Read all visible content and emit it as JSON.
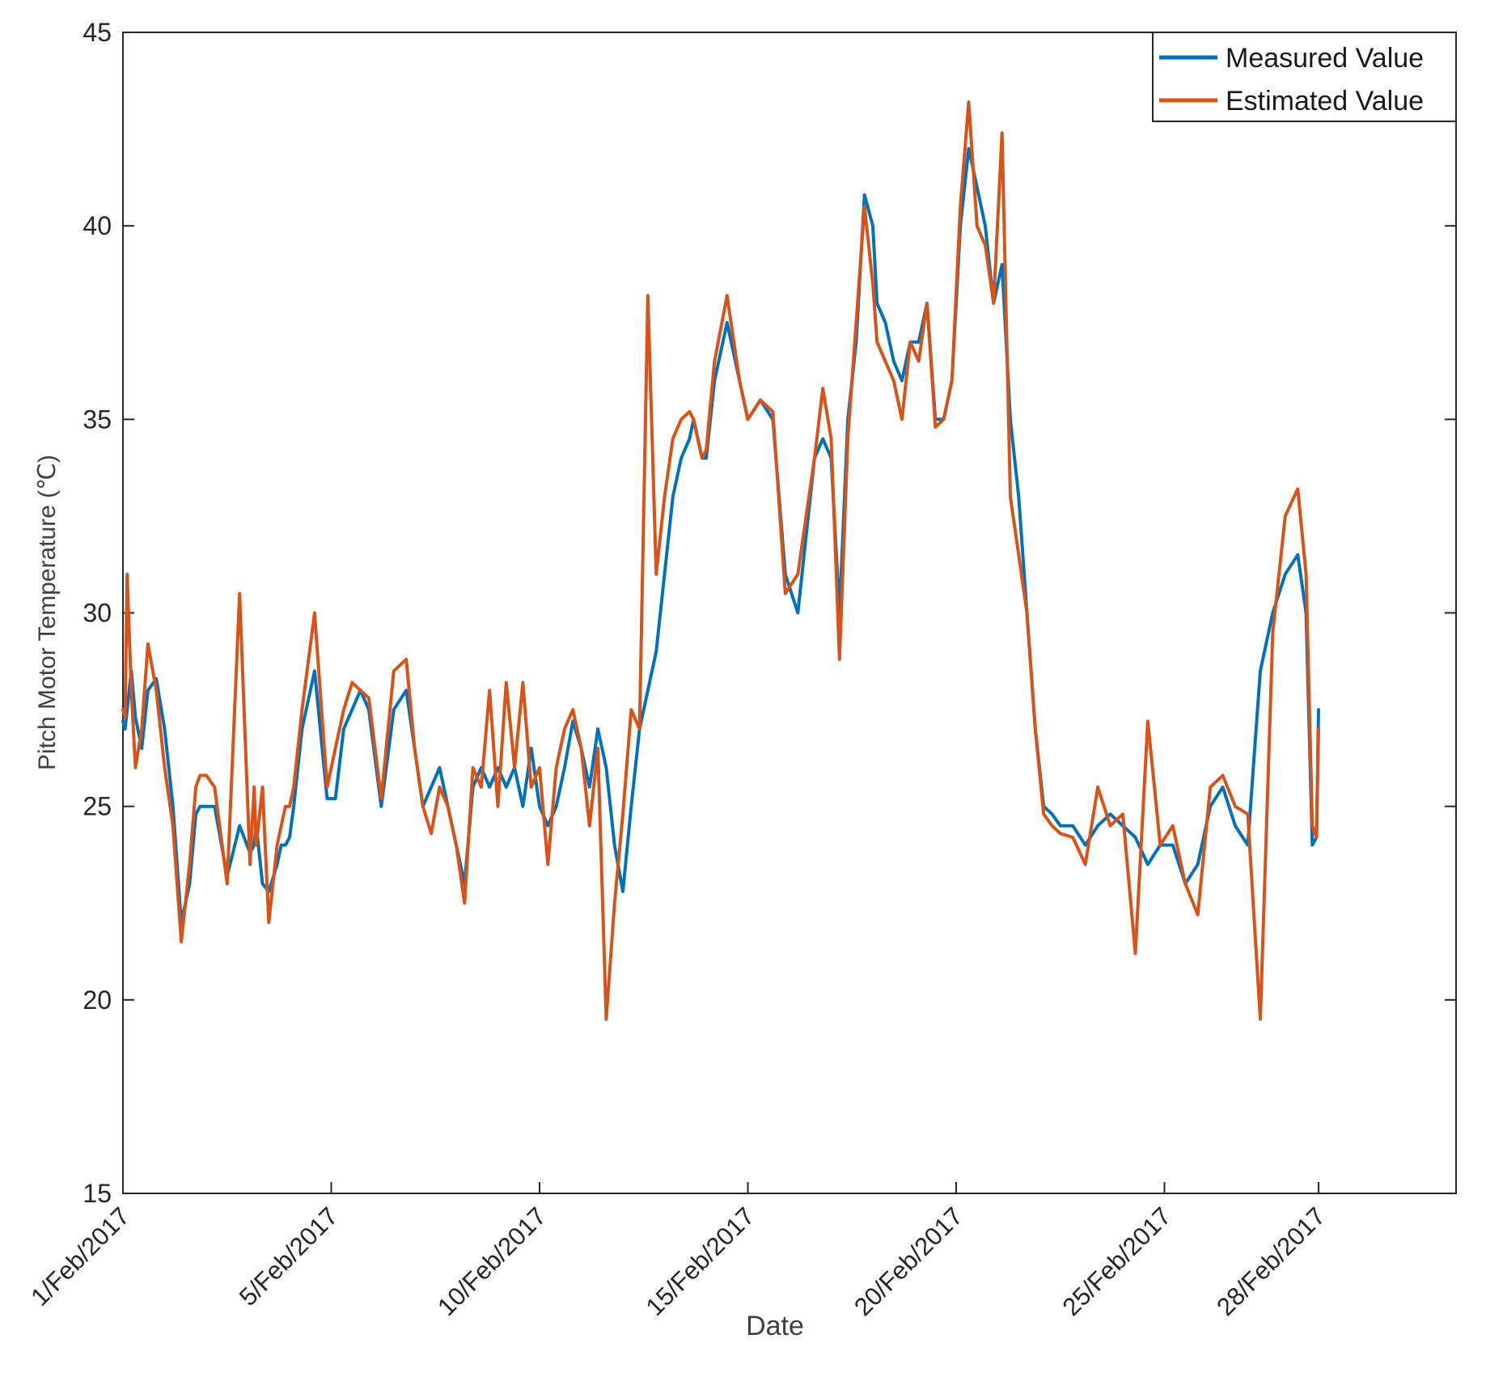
{
  "chart_data": {
    "type": "line",
    "title": "",
    "xlabel": "Date",
    "ylabel": "Pitch Motor Temperature (℃)",
    "xlim": [
      1,
      33
    ],
    "ylim": [
      15,
      45
    ],
    "yticks": [
      15,
      20,
      25,
      30,
      35,
      40,
      45
    ],
    "xticks": [
      {
        "value": 1,
        "label": "1/Feb/2017"
      },
      {
        "value": 6,
        "label": "5/Feb/2017"
      },
      {
        "value": 11,
        "label": "10/Feb/2017"
      },
      {
        "value": 16,
        "label": "15/Feb/2017"
      },
      {
        "value": 21,
        "label": "20/Feb/2017"
      },
      {
        "value": 26,
        "label": "25/Feb/2017"
      },
      {
        "value": 29.7,
        "label": "28/Feb/2017"
      }
    ],
    "grid": false,
    "legend_position": "top-right",
    "series": [
      {
        "name": "Measured Value",
        "color": "#0072BD",
        "x": [
          1,
          1.05,
          1.1,
          1.2,
          1.3,
          1.45,
          1.6,
          1.8,
          2.0,
          2.2,
          2.4,
          2.6,
          2.75,
          2.85,
          3.0,
          3.2,
          3.5,
          3.8,
          4.05,
          4.15,
          4.2,
          4.35,
          4.5,
          4.7,
          4.8,
          4.9,
          5.0,
          5.1,
          5.3,
          5.6,
          5.9,
          6.1,
          6.3,
          6.5,
          6.7,
          6.9,
          7.2,
          7.5,
          7.8,
          8.0,
          8.2,
          8.4,
          8.6,
          8.8,
          9.0,
          9.2,
          9.4,
          9.6,
          9.8,
          10.0,
          10.2,
          10.4,
          10.6,
          10.8,
          11.0,
          11.2,
          11.4,
          11.6,
          11.8,
          12.0,
          12.2,
          12.4,
          12.6,
          12.8,
          13.0,
          13.2,
          13.4,
          13.6,
          13.8,
          14.0,
          14.2,
          14.4,
          14.6,
          14.7,
          14.8,
          14.9,
          15.0,
          15.2,
          15.5,
          15.8,
          16.0,
          16.3,
          16.6,
          16.9,
          17.2,
          17.4,
          17.6,
          17.8,
          18.0,
          18.2,
          18.4,
          18.6,
          18.8,
          19.0,
          19.1,
          19.3,
          19.5,
          19.7,
          19.9,
          20.1,
          20.3,
          20.5,
          20.7,
          20.9,
          21.1,
          21.3,
          21.5,
          21.7,
          21.9,
          22.1,
          22.3,
          22.5,
          22.7,
          22.9,
          23.1,
          23.3,
          23.5,
          23.8,
          24.1,
          24.4,
          24.7,
          25.0,
          25.3,
          25.6,
          25.9,
          26.2,
          26.5,
          26.8,
          27.1,
          27.4,
          27.7,
          28.0,
          28.3,
          28.6,
          28.9,
          29.2,
          29.4,
          29.55,
          29.65,
          29.7
        ],
        "y": [
          27.2,
          27.0,
          27.5,
          28.5,
          27.3,
          26.5,
          28.0,
          28.3,
          27.0,
          25.0,
          22.0,
          23.0,
          24.8,
          25.0,
          25.0,
          25.0,
          23.2,
          24.5,
          23.8,
          24.0,
          24.5,
          23.0,
          22.8,
          23.5,
          24.0,
          24.0,
          24.2,
          25.0,
          27.0,
          28.5,
          25.2,
          25.2,
          27.0,
          27.5,
          28.0,
          27.5,
          25.0,
          27.5,
          28.0,
          26.5,
          25.0,
          25.5,
          26.0,
          25.0,
          24.0,
          23.0,
          25.5,
          26.0,
          25.5,
          26.0,
          25.5,
          26.0,
          25.0,
          26.5,
          25.0,
          24.5,
          25.0,
          26.0,
          27.2,
          26.5,
          25.5,
          27.0,
          26.0,
          24.0,
          22.8,
          25.0,
          27.0,
          28.0,
          29.0,
          31.0,
          33.0,
          34.0,
          34.5,
          35.0,
          34.5,
          34.0,
          34.0,
          36.0,
          37.5,
          36.0,
          35.0,
          35.5,
          35.0,
          31.0,
          30.0,
          32.0,
          34.0,
          34.5,
          34.0,
          30.0,
          35.0,
          37.0,
          40.8,
          40.0,
          38.0,
          37.5,
          36.5,
          36.0,
          37.0,
          37.0,
          38.0,
          35.0,
          35.0,
          36.0,
          40.0,
          42.0,
          41.0,
          40.0,
          38.0,
          39.0,
          35.0,
          33.0,
          30.0,
          27.0,
          25.0,
          24.8,
          24.5,
          24.5,
          24.0,
          24.5,
          24.8,
          24.5,
          24.2,
          23.5,
          24.0,
          24.0,
          23.0,
          23.5,
          25.0,
          25.5,
          24.5,
          24.0,
          28.5,
          30.0,
          31.0,
          31.5,
          30.0,
          24.0,
          24.2,
          27.5
        ]
      },
      {
        "name": "Estimated Value",
        "color": "#D95319",
        "x": [
          1,
          1.05,
          1.1,
          1.2,
          1.3,
          1.45,
          1.6,
          1.8,
          2.0,
          2.2,
          2.4,
          2.6,
          2.75,
          2.85,
          3.0,
          3.2,
          3.5,
          3.8,
          4.05,
          4.15,
          4.2,
          4.35,
          4.5,
          4.7,
          4.8,
          4.9,
          5.0,
          5.1,
          5.3,
          5.6,
          5.9,
          6.1,
          6.3,
          6.5,
          6.7,
          6.9,
          7.2,
          7.5,
          7.8,
          8.0,
          8.2,
          8.4,
          8.6,
          8.8,
          9.0,
          9.2,
          9.4,
          9.6,
          9.8,
          10.0,
          10.2,
          10.4,
          10.6,
          10.8,
          11.0,
          11.2,
          11.4,
          11.6,
          11.8,
          12.0,
          12.2,
          12.4,
          12.6,
          12.8,
          13.0,
          13.2,
          13.4,
          13.6,
          13.8,
          14.0,
          14.2,
          14.4,
          14.6,
          14.7,
          14.8,
          14.9,
          15.0,
          15.2,
          15.5,
          15.8,
          16.0,
          16.3,
          16.6,
          16.9,
          17.2,
          17.4,
          17.6,
          17.8,
          18.0,
          18.2,
          18.4,
          18.6,
          18.8,
          19.0,
          19.1,
          19.3,
          19.5,
          19.7,
          19.9,
          20.1,
          20.3,
          20.5,
          20.7,
          20.9,
          21.1,
          21.3,
          21.5,
          21.7,
          21.9,
          22.1,
          22.3,
          22.5,
          22.7,
          22.9,
          23.1,
          23.3,
          23.5,
          23.8,
          24.1,
          24.4,
          24.7,
          25.0,
          25.3,
          25.6,
          25.9,
          26.2,
          26.5,
          26.8,
          27.1,
          27.4,
          27.7,
          28.0,
          28.3,
          28.6,
          28.9,
          29.2,
          29.4,
          29.55,
          29.65,
          29.7
        ],
        "y": [
          27.5,
          27.3,
          31.0,
          28.0,
          26.0,
          27.0,
          29.2,
          28.0,
          26.0,
          24.5,
          21.5,
          23.5,
          25.5,
          25.8,
          25.8,
          25.5,
          23.0,
          30.5,
          23.5,
          25.5,
          24.0,
          25.5,
          22.0,
          24.0,
          24.5,
          25.0,
          25.0,
          25.5,
          27.5,
          30.0,
          25.5,
          26.5,
          27.5,
          28.2,
          28.0,
          27.8,
          25.2,
          28.5,
          28.8,
          26.5,
          25.0,
          24.3,
          25.5,
          25.0,
          24.0,
          22.5,
          26.0,
          25.5,
          28.0,
          25.0,
          28.2,
          26.0,
          28.2,
          25.5,
          26.0,
          23.5,
          26.0,
          27.0,
          27.5,
          26.5,
          24.5,
          26.5,
          19.5,
          22.5,
          24.8,
          27.5,
          27.0,
          38.2,
          31.0,
          33.0,
          34.5,
          35.0,
          35.2,
          35.0,
          34.5,
          34.0,
          34.2,
          36.5,
          38.2,
          36.0,
          35.0,
          35.5,
          35.2,
          30.5,
          31.0,
          32.5,
          34.0,
          35.8,
          34.5,
          28.8,
          34.5,
          37.5,
          40.5,
          38.5,
          37.0,
          36.5,
          36.0,
          35.0,
          37.0,
          36.5,
          38.0,
          34.8,
          35.0,
          36.0,
          40.5,
          43.2,
          40.0,
          39.5,
          38.0,
          42.4,
          33.0,
          31.5,
          30.0,
          27.0,
          24.8,
          24.5,
          24.3,
          24.2,
          23.5,
          25.5,
          24.5,
          24.8,
          21.2,
          27.2,
          24.0,
          24.5,
          23.0,
          22.2,
          25.5,
          25.8,
          25.0,
          24.8,
          19.5,
          29.5,
          32.5,
          33.2,
          31.0,
          24.5,
          24.2,
          27.0
        ]
      }
    ]
  }
}
